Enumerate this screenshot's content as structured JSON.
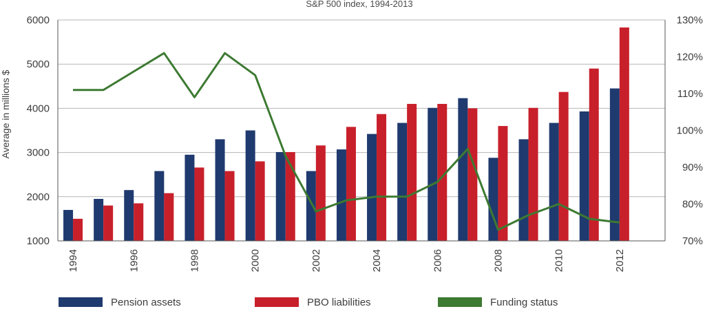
{
  "chart_data": {
    "type": "bar",
    "title": "S&P 500 index, 1994-2013",
    "ylabel": "Average in millions $",
    "y2label": "",
    "categories": [
      "1994",
      "1995",
      "1996",
      "1997",
      "1998",
      "1999",
      "2000",
      "2001",
      "2002",
      "2003",
      "2004",
      "2005",
      "2006",
      "2007",
      "2008",
      "2009",
      "2010",
      "2011",
      "2012",
      "2013"
    ],
    "x_tick_labels": [
      "1994",
      "1996",
      "1998",
      "2000",
      "2002",
      "2004",
      "2006",
      "2008",
      "2010",
      "2012"
    ],
    "ylim": [
      1000,
      6000
    ],
    "y_ticks": [
      "1000",
      "2000",
      "3000",
      "4000",
      "5000",
      "6000"
    ],
    "y2lim": [
      70,
      130
    ],
    "y2_ticks": [
      "70%",
      "80%",
      "90%",
      "100%",
      "110%",
      "120%",
      "130%"
    ],
    "grid": true,
    "legend_position": "bottom",
    "series": [
      {
        "name": "Pension assets",
        "type": "bar",
        "color": "#1f3a6e",
        "values": [
          1700,
          1950,
          2150,
          2580,
          2950,
          3300,
          3500,
          3010,
          2580,
          3070,
          3420,
          3670,
          4010,
          4230,
          2880,
          3300,
          3670,
          3930,
          4450,
          null
        ]
      },
      {
        "name": "PBO liabilities",
        "type": "bar",
        "color": "#c8202b",
        "values": [
          1500,
          1800,
          1850,
          2080,
          2660,
          2580,
          2800,
          3010,
          3160,
          3580,
          3870,
          4100,
          4100,
          4000,
          3600,
          4010,
          4370,
          4900,
          5830,
          null
        ]
      },
      {
        "name": "Funding status",
        "type": "line",
        "axis": "right",
        "color": "#3d7a32",
        "values": [
          111,
          111,
          116,
          121,
          109,
          121,
          115,
          93,
          78,
          81,
          82,
          82,
          86,
          95,
          73,
          77,
          80,
          76,
          75,
          null
        ]
      }
    ]
  }
}
